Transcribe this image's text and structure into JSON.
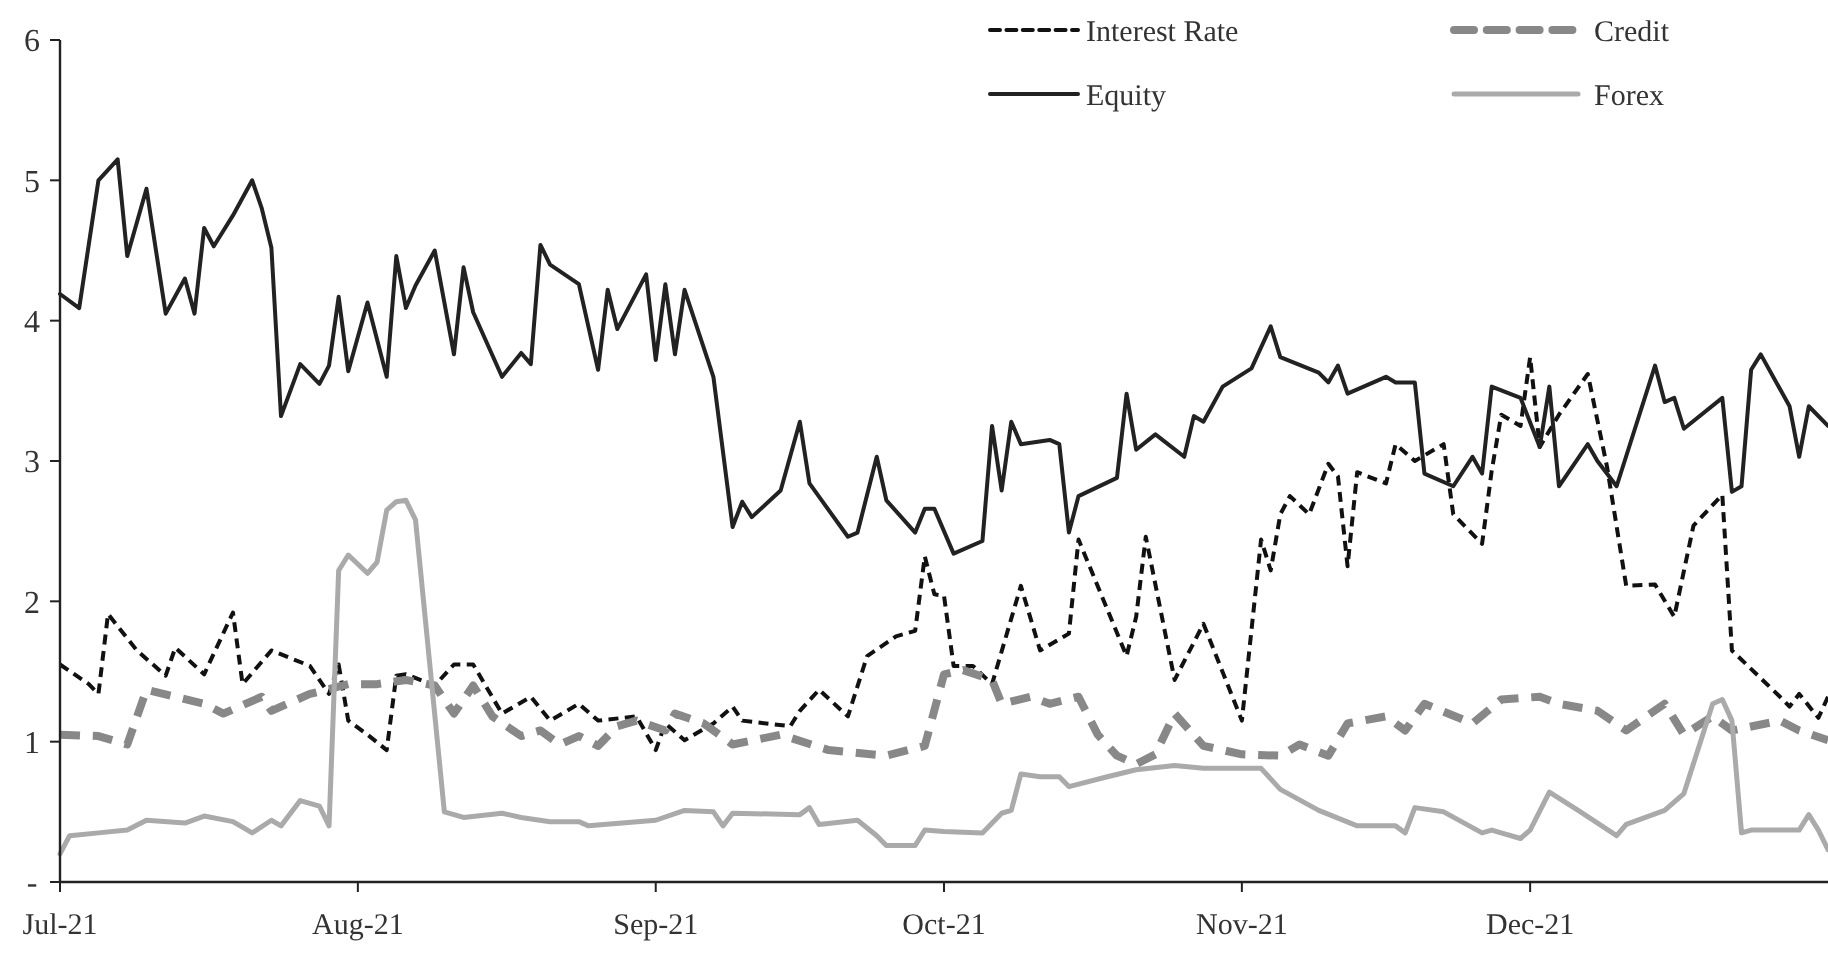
{
  "chart_data": {
    "type": "line",
    "xlim": [
      "2021-07-01",
      "2022-01-01"
    ],
    "xticks": [
      {
        "value": "2021-07-01",
        "label": "Jul-21"
      },
      {
        "value": "2021-08-01",
        "label": "Aug-21"
      },
      {
        "value": "2021-09-01",
        "label": "Sep-21"
      },
      {
        "value": "2021-10-01",
        "label": "Oct-21"
      },
      {
        "value": "2021-11-01",
        "label": "Nov-21"
      },
      {
        "value": "2021-12-01",
        "label": "Dec-21"
      }
    ],
    "ylim": [
      0,
      6
    ],
    "yticks": [
      {
        "value": 0,
        "label": "-"
      },
      1,
      2,
      3,
      4,
      5,
      6
    ],
    "grid": false,
    "legend": "top right",
    "marker": "none",
    "series": [
      {
        "name": "Interest Rate",
        "color": "#111111",
        "line_style": "dashed",
        "x": [
          "2021-07-01",
          "2021-07-04",
          "2021-07-05",
          "2021-07-06",
          "2021-07-09",
          "2021-07-12",
          "2021-07-13",
          "2021-07-16",
          "2021-07-19",
          "2021-07-20",
          "2021-07-23",
          "2021-07-27",
          "2021-07-29",
          "2021-07-30",
          "2021-07-31",
          "2021-08-02",
          "2021-08-04",
          "2021-08-05",
          "2021-08-06",
          "2021-08-09",
          "2021-08-11",
          "2021-08-13",
          "2021-08-16",
          "2021-08-19",
          "2021-08-21",
          "2021-08-24",
          "2021-08-26",
          "2021-08-30",
          "2021-09-01",
          "2021-09-02",
          "2021-09-04",
          "2021-09-07",
          "2021-09-09",
          "2021-09-10",
          "2021-09-15",
          "2021-09-16",
          "2021-09-18",
          "2021-09-21",
          "2021-09-23",
          "2021-09-26",
          "2021-09-28",
          "2021-09-29",
          "2021-09-30",
          "2021-10-01",
          "2021-10-02",
          "2021-10-04",
          "2021-10-06",
          "2021-10-09",
          "2021-10-11",
          "2021-10-14",
          "2021-10-15",
          "2021-10-20",
          "2021-10-21",
          "2021-10-22",
          "2021-10-25",
          "2021-10-28",
          "2021-11-01",
          "2021-11-03",
          "2021-11-04",
          "2021-11-05",
          "2021-11-06",
          "2021-11-08",
          "2021-11-10",
          "2021-11-11",
          "2021-11-12",
          "2021-11-13",
          "2021-11-16",
          "2021-11-17",
          "2021-11-19",
          "2021-11-22",
          "2021-11-23",
          "2021-11-26",
          "2021-11-27",
          "2021-11-28",
          "2021-11-30",
          "2021-12-01",
          "2021-12-02",
          "2021-12-04",
          "2021-12-07",
          "2021-12-09",
          "2021-12-11",
          "2021-12-14",
          "2021-12-16",
          "2021-12-18",
          "2021-12-21",
          "2021-12-22",
          "2021-12-27",
          "2021-12-28",
          "2021-12-29",
          "2021-12-31",
          "2022-01-01"
        ],
        "values": [
          1.55,
          1.41,
          1.34,
          1.91,
          1.65,
          1.47,
          1.67,
          1.48,
          1.92,
          1.41,
          1.65,
          1.54,
          1.34,
          1.55,
          1.15,
          1.05,
          0.94,
          1.47,
          1.48,
          1.4,
          1.55,
          1.55,
          1.2,
          1.32,
          1.15,
          1.27,
          1.15,
          1.18,
          0.94,
          1.13,
          1.01,
          1.13,
          1.25,
          1.15,
          1.11,
          1.22,
          1.37,
          1.18,
          1.61,
          1.75,
          1.79,
          2.32,
          2.05,
          2.04,
          1.54,
          1.54,
          1.41,
          2.11,
          1.65,
          1.77,
          2.44,
          1.61,
          1.89,
          2.46,
          1.44,
          1.84,
          1.15,
          2.44,
          2.22,
          2.62,
          2.75,
          2.62,
          2.98,
          2.89,
          2.25,
          2.92,
          2.84,
          3.12,
          3.0,
          3.12,
          2.62,
          2.41,
          2.93,
          3.33,
          3.25,
          3.74,
          3.1,
          3.33,
          3.62,
          2.96,
          2.11,
          2.12,
          1.89,
          2.54,
          2.76,
          1.65,
          1.32,
          1.25,
          1.34,
          1.17,
          1.32
        ]
      },
      {
        "name": "Credit",
        "color": "#888888",
        "line_style": "dashed",
        "x": [
          "2021-07-01",
          "2021-07-05",
          "2021-07-08",
          "2021-07-10",
          "2021-07-13",
          "2021-07-16",
          "2021-07-18",
          "2021-07-22",
          "2021-07-23",
          "2021-07-27",
          "2021-07-31",
          "2021-08-03",
          "2021-08-06",
          "2021-08-09",
          "2021-08-11",
          "2021-08-13",
          "2021-08-15",
          "2021-08-18",
          "2021-08-20",
          "2021-08-22",
          "2021-08-24",
          "2021-08-26",
          "2021-08-28",
          "2021-08-30",
          "2021-09-02",
          "2021-09-03",
          "2021-09-06",
          "2021-09-09",
          "2021-09-14",
          "2021-09-19",
          "2021-09-25",
          "2021-09-29",
          "2021-10-01",
          "2021-10-03",
          "2021-10-06",
          "2021-10-07",
          "2021-10-10",
          "2021-10-12",
          "2021-10-15",
          "2021-10-17",
          "2021-10-19",
          "2021-10-21",
          "2021-10-23",
          "2021-10-25",
          "2021-10-28",
          "2021-11-01",
          "2021-11-05",
          "2021-11-07",
          "2021-11-10",
          "2021-11-12",
          "2021-11-16",
          "2021-11-18",
          "2021-11-20",
          "2021-11-25",
          "2021-11-28",
          "2021-12-02",
          "2021-12-04",
          "2021-12-08",
          "2021-12-11",
          "2021-12-15",
          "2021-12-17",
          "2021-12-20",
          "2021-12-22",
          "2021-12-27",
          "2021-12-29",
          "2022-01-01"
        ],
        "values": [
          1.05,
          1.04,
          0.98,
          1.37,
          1.32,
          1.27,
          1.2,
          1.32,
          1.22,
          1.34,
          1.41,
          1.41,
          1.44,
          1.4,
          1.2,
          1.4,
          1.18,
          1.04,
          1.08,
          0.98,
          1.04,
          0.97,
          1.11,
          1.15,
          1.08,
          1.2,
          1.13,
          0.98,
          1.05,
          0.94,
          0.9,
          0.97,
          1.48,
          1.51,
          1.44,
          1.27,
          1.32,
          1.27,
          1.32,
          1.05,
          0.9,
          0.84,
          0.91,
          1.2,
          0.97,
          0.91,
          0.9,
          0.98,
          0.9,
          1.13,
          1.18,
          1.08,
          1.27,
          1.13,
          1.3,
          1.32,
          1.27,
          1.22,
          1.08,
          1.27,
          1.05,
          1.18,
          1.08,
          1.15,
          1.08,
          1.01
        ]
      },
      {
        "name": "Equity",
        "color": "#222222",
        "line_style": "solid",
        "x": [
          "2021-07-01",
          "2021-07-03",
          "2021-07-05",
          "2021-07-07",
          "2021-07-08",
          "2021-07-10",
          "2021-07-12",
          "2021-07-14",
          "2021-07-15",
          "2021-07-16",
          "2021-07-17",
          "2021-07-19",
          "2021-07-21",
          "2021-07-22",
          "2021-07-23",
          "2021-07-24",
          "2021-07-26",
          "2021-07-28",
          "2021-07-29",
          "2021-07-30",
          "2021-07-31",
          "2021-08-02",
          "2021-08-04",
          "2021-08-05",
          "2021-08-06",
          "2021-08-07",
          "2021-08-09",
          "2021-08-11",
          "2021-08-12",
          "2021-08-13",
          "2021-08-16",
          "2021-08-18",
          "2021-08-19",
          "2021-08-20",
          "2021-08-21",
          "2021-08-24",
          "2021-08-26",
          "2021-08-27",
          "2021-08-28",
          "2021-08-31",
          "2021-09-01",
          "2021-09-02",
          "2021-09-03",
          "2021-09-04",
          "2021-09-07",
          "2021-09-09",
          "2021-09-10",
          "2021-09-11",
          "2021-09-14",
          "2021-09-16",
          "2021-09-17",
          "2021-09-21",
          "2021-09-22",
          "2021-09-24",
          "2021-09-25",
          "2021-09-28",
          "2021-09-29",
          "2021-09-30",
          "2021-10-02",
          "2021-10-05",
          "2021-10-06",
          "2021-10-07",
          "2021-10-08",
          "2021-10-09",
          "2021-10-12",
          "2021-10-13",
          "2021-10-14",
          "2021-10-15",
          "2021-10-19",
          "2021-10-20",
          "2021-10-21",
          "2021-10-23",
          "2021-10-26",
          "2021-10-27",
          "2021-10-28",
          "2021-10-30",
          "2021-11-02",
          "2021-11-04",
          "2021-11-05",
          "2021-11-09",
          "2021-11-10",
          "2021-11-11",
          "2021-11-12",
          "2021-11-16",
          "2021-11-17",
          "2021-11-19",
          "2021-11-20",
          "2021-11-23",
          "2021-11-25",
          "2021-11-26",
          "2021-11-27",
          "2021-11-30",
          "2021-12-02",
          "2021-12-03",
          "2021-12-04",
          "2021-12-07",
          "2021-12-08",
          "2021-12-10",
          "2021-12-14",
          "2021-12-15",
          "2021-12-16",
          "2021-12-17",
          "2021-12-21",
          "2021-12-22",
          "2021-12-23",
          "2021-12-24",
          "2021-12-25",
          "2021-12-28",
          "2021-12-29",
          "2021-12-30",
          "2022-01-01"
        ],
        "values": [
          4.19,
          4.09,
          5.0,
          5.15,
          4.46,
          4.94,
          4.05,
          4.3,
          4.05,
          4.66,
          4.53,
          4.75,
          5.0,
          4.8,
          4.52,
          3.32,
          3.69,
          3.55,
          3.68,
          4.17,
          3.64,
          4.13,
          3.6,
          4.46,
          4.09,
          4.25,
          4.5,
          3.76,
          4.38,
          4.06,
          3.6,
          3.77,
          3.69,
          4.54,
          4.4,
          4.26,
          3.65,
          4.22,
          3.94,
          4.33,
          3.72,
          4.26,
          3.76,
          4.22,
          3.6,
          2.53,
          2.71,
          2.6,
          2.79,
          3.28,
          2.84,
          2.46,
          2.49,
          3.03,
          2.72,
          2.49,
          2.66,
          2.66,
          2.34,
          2.43,
          3.25,
          2.79,
          3.28,
          3.12,
          3.15,
          3.12,
          2.49,
          2.75,
          2.88,
          3.48,
          3.08,
          3.19,
          3.03,
          3.32,
          3.28,
          3.53,
          3.66,
          3.96,
          3.74,
          3.63,
          3.56,
          3.68,
          3.48,
          3.6,
          3.56,
          3.56,
          2.91,
          2.82,
          3.03,
          2.91,
          3.53,
          3.45,
          3.1,
          3.53,
          2.82,
          3.12,
          3.0,
          2.82,
          3.68,
          3.42,
          3.45,
          3.23,
          3.45,
          2.78,
          2.82,
          3.65,
          3.76,
          3.39,
          3.03,
          3.39,
          3.25
        ]
      },
      {
        "name": "Forex",
        "color": "#aaaaaa",
        "line_style": "solid",
        "x": [
          "2021-07-01",
          "2021-07-02",
          "2021-07-05",
          "2021-07-08",
          "2021-07-10",
          "2021-07-14",
          "2021-07-16",
          "2021-07-19",
          "2021-07-21",
          "2021-07-23",
          "2021-07-24",
          "2021-07-26",
          "2021-07-28",
          "2021-07-29",
          "2021-07-30",
          "2021-07-31",
          "2021-08-02",
          "2021-08-03",
          "2021-08-04",
          "2021-08-05",
          "2021-08-06",
          "2021-08-07",
          "2021-08-10",
          "2021-08-12",
          "2021-08-16",
          "2021-08-18",
          "2021-08-21",
          "2021-08-24",
          "2021-08-25",
          "2021-09-01",
          "2021-09-04",
          "2021-09-07",
          "2021-09-08",
          "2021-09-09",
          "2021-09-16",
          "2021-09-17",
          "2021-09-18",
          "2021-09-22",
          "2021-09-24",
          "2021-09-25",
          "2021-09-28",
          "2021-09-29",
          "2021-10-01",
          "2021-10-05",
          "2021-10-07",
          "2021-10-08",
          "2021-10-09",
          "2021-10-11",
          "2021-10-13",
          "2021-10-14",
          "2021-10-18",
          "2021-10-21",
          "2021-10-25",
          "2021-10-28",
          "2021-11-03",
          "2021-11-05",
          "2021-11-09",
          "2021-11-13",
          "2021-11-17",
          "2021-11-18",
          "2021-11-19",
          "2021-11-22",
          "2021-11-26",
          "2021-11-27",
          "2021-11-30",
          "2021-12-01",
          "2021-12-03",
          "2021-12-06",
          "2021-12-10",
          "2021-12-11",
          "2021-12-15",
          "2021-12-17",
          "2021-12-20",
          "2021-12-21",
          "2021-12-22",
          "2021-12-23",
          "2021-12-24",
          "2021-12-29",
          "2021-12-30",
          "2021-12-31",
          "2022-01-01"
        ],
        "values": [
          0.2,
          0.33,
          0.35,
          0.37,
          0.44,
          0.42,
          0.47,
          0.43,
          0.35,
          0.44,
          0.4,
          0.58,
          0.54,
          0.4,
          2.22,
          2.33,
          2.2,
          2.28,
          2.65,
          2.71,
          2.72,
          2.58,
          0.5,
          0.46,
          0.49,
          0.46,
          0.43,
          0.43,
          0.4,
          0.44,
          0.51,
          0.5,
          0.4,
          0.49,
          0.48,
          0.53,
          0.41,
          0.44,
          0.33,
          0.26,
          0.26,
          0.37,
          0.36,
          0.35,
          0.49,
          0.51,
          0.77,
          0.75,
          0.75,
          0.68,
          0.75,
          0.8,
          0.83,
          0.81,
          0.81,
          0.66,
          0.51,
          0.4,
          0.4,
          0.35,
          0.53,
          0.5,
          0.35,
          0.37,
          0.31,
          0.37,
          0.64,
          0.51,
          0.33,
          0.41,
          0.51,
          0.63,
          1.27,
          1.3,
          1.15,
          0.35,
          0.37,
          0.37,
          0.48,
          0.37,
          0.23
        ]
      }
    ]
  }
}
